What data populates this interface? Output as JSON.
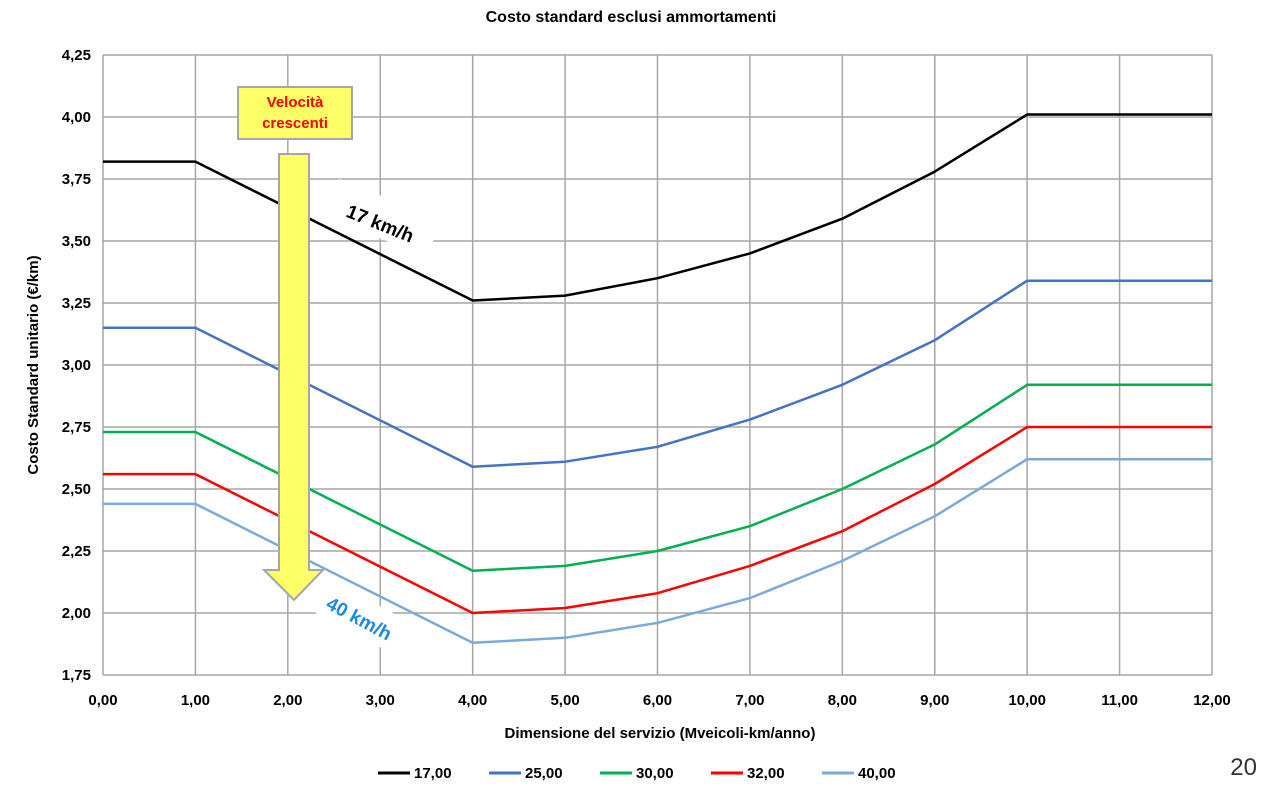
{
  "page_number": "20",
  "chart_data": {
    "type": "line",
    "title": "Costo standard esclusi ammortamenti",
    "xlabel": "Dimensione del servizio (Mveicoli-km/anno)",
    "ylabel": "Costo Standard unitario (€/km)",
    "xlim": [
      0,
      12
    ],
    "ylim": [
      1.75,
      4.25
    ],
    "x_ticks": [
      0,
      1,
      2,
      3,
      4,
      5,
      6,
      7,
      8,
      9,
      10,
      11,
      12
    ],
    "y_ticks": [
      1.75,
      2.0,
      2.25,
      2.5,
      2.75,
      3.0,
      3.25,
      3.5,
      3.75,
      4.0,
      4.25
    ],
    "x_tick_labels": [
      "0,00",
      "1,00",
      "2,00",
      "3,00",
      "4,00",
      "5,00",
      "6,00",
      "7,00",
      "8,00",
      "9,00",
      "10,00",
      "11,00",
      "12,00"
    ],
    "y_tick_labels": [
      "1,75",
      "2,00",
      "2,25",
      "2,50",
      "2,75",
      "3,00",
      "3,25",
      "3,50",
      "3,75",
      "4,00",
      "4,25"
    ],
    "grid": true,
    "legend_position": "bottom",
    "x": [
      0,
      1,
      4,
      5,
      6,
      7,
      8,
      9,
      10,
      12
    ],
    "series": [
      {
        "name": "17,00",
        "color": "#000000",
        "values": [
          3.82,
          3.82,
          3.26,
          3.28,
          3.35,
          3.45,
          3.59,
          3.78,
          4.01,
          4.01
        ]
      },
      {
        "name": "25,00",
        "color": "#4472c4",
        "values": [
          3.15,
          3.15,
          2.59,
          2.61,
          2.67,
          2.78,
          2.92,
          3.1,
          3.34,
          3.34
        ]
      },
      {
        "name": "30,00",
        "color": "#00b050",
        "values": [
          2.73,
          2.73,
          2.17,
          2.19,
          2.25,
          2.35,
          2.5,
          2.68,
          2.92,
          2.92
        ]
      },
      {
        "name": "32,00",
        "color": "#ff0000",
        "values": [
          2.56,
          2.56,
          2.0,
          2.02,
          2.08,
          2.19,
          2.33,
          2.52,
          2.75,
          2.75
        ]
      },
      {
        "name": "40,00",
        "color": "#7aaadb",
        "values": [
          2.44,
          2.44,
          1.88,
          1.9,
          1.96,
          2.06,
          2.21,
          2.39,
          2.62,
          2.62
        ]
      }
    ],
    "annotations": {
      "box_line1": "Velocità",
      "box_line2": "crescenti",
      "label_17": "17 km/h",
      "label_40": "40 km/h",
      "box_text_color": "#ff0000",
      "box_fill": "#ffff66",
      "arrow_fill": "#ffff66",
      "label_40_color": "#1e88e5"
    }
  }
}
